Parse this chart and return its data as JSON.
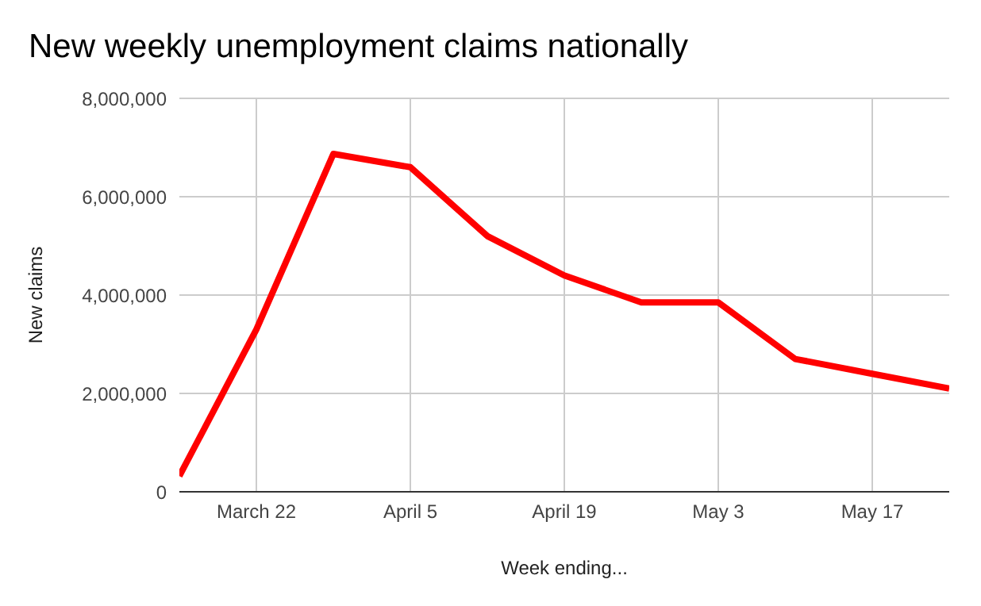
{
  "chart_data": {
    "type": "line",
    "title": "New weekly unemployment claims nationally",
    "xlabel": "Week ending...",
    "ylabel": "New claims",
    "x": [
      "--03-15",
      "--03-22",
      "--03-29",
      "--04-05",
      "--04-12",
      "--04-19",
      "--04-26",
      "--05-03",
      "--05-10",
      "--05-17",
      "--05-24"
    ],
    "series": [
      {
        "color": "#ff0000",
        "values": [
          320000,
          3300000,
          6870000,
          6600000,
          5200000,
          4400000,
          3850000,
          3850000,
          2700000,
          2400000,
          2100000
        ]
      }
    ],
    "xlim": [
      "--03-15",
      "--05-24"
    ],
    "xticks": [
      {
        "value": "--03-22",
        "label": "March 22"
      },
      {
        "value": "--04-05",
        "label": "April 5"
      },
      {
        "value": "--04-19",
        "label": "April 19"
      },
      {
        "value": "--05-03",
        "label": "May 3"
      },
      {
        "value": "--05-17",
        "label": "May 17"
      }
    ],
    "ylim": [
      0,
      8000000
    ],
    "yticks": [
      0,
      {
        "value": 2000000,
        "label": "2,000,000"
      },
      {
        "value": 4000000,
        "label": "4,000,000"
      },
      {
        "value": 6000000,
        "label": "6,000,000"
      },
      {
        "value": 8000000,
        "label": "8,000,000"
      }
    ],
    "grid": true,
    "marker": "none",
    "line_style": "solid"
  }
}
